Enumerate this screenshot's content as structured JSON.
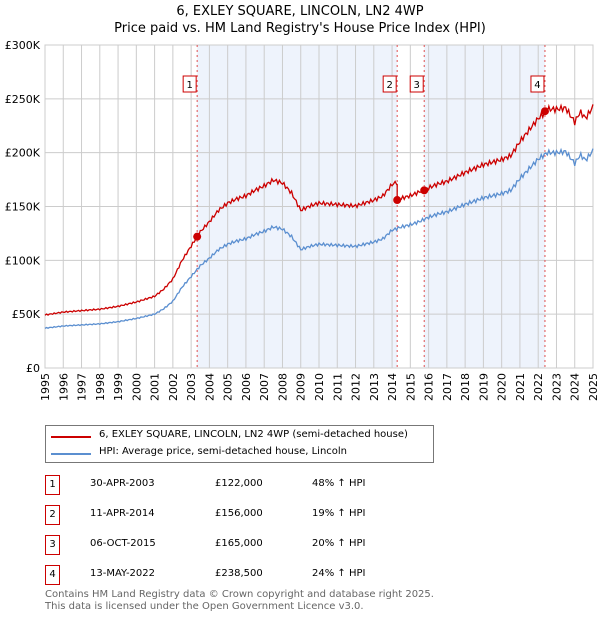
{
  "title": "6, EXLEY SQUARE, LINCOLN, LN2 4WP",
  "subtitle": "Price paid vs. HM Land Registry's House Price Index (HPI)",
  "chart_data": {
    "type": "line",
    "title": "6, EXLEY SQUARE, LINCOLN, LN2 4WP",
    "subtitle": "Price paid vs. HM Land Registry's House Price Index (HPI)",
    "xlim": [
      1995,
      2025
    ],
    "ylim": [
      0,
      300000
    ],
    "xticks": [
      "1995",
      "1996",
      "1997",
      "1998",
      "1999",
      "2000",
      "2001",
      "2002",
      "2003",
      "2004",
      "2005",
      "2006",
      "2007",
      "2008",
      "2009",
      "2010",
      "2011",
      "2012",
      "2013",
      "2014",
      "2015",
      "2016",
      "2017",
      "2018",
      "2019",
      "2020",
      "2021",
      "2022",
      "2023",
      "2024",
      "2025"
    ],
    "yticks": [
      {
        "v": 0,
        "label": "£0"
      },
      {
        "v": 50000,
        "label": "£50K"
      },
      {
        "v": 100000,
        "label": "£100K"
      },
      {
        "v": 150000,
        "label": "£150K"
      },
      {
        "v": 200000,
        "label": "£200K"
      },
      {
        "v": 250000,
        "label": "£250K"
      },
      {
        "v": 300000,
        "label": "£300K"
      }
    ],
    "grid": true,
    "hpi": {
      "name": "HPI: Average price, semi-detached house, Lincoln",
      "color": "#5b8fd0",
      "x": [
        1995,
        1996,
        1997,
        1998,
        1999,
        2000,
        2001,
        2001.5,
        2002,
        2002.5,
        2003,
        2003.5,
        2004,
        2004.5,
        2005,
        2005.5,
        2006,
        2006.5,
        2007,
        2007.5,
        2008,
        2008.5,
        2009,
        2009.5,
        2010,
        2011,
        2012,
        2013,
        2013.5,
        2014,
        2014.5,
        2015,
        2015.5,
        2016,
        2016.5,
        2017,
        2018,
        2019,
        2020,
        2020.5,
        2021,
        2021.5,
        2022,
        2022.5,
        2023,
        2023.5,
        2024,
        2024.3,
        2024.6,
        2025
      ],
      "y": [
        37000,
        39000,
        40000,
        41000,
        43000,
        46000,
        50000,
        55000,
        62000,
        75000,
        85000,
        95000,
        102000,
        110000,
        115000,
        118000,
        120000,
        124000,
        127000,
        131000,
        129000,
        122000,
        110000,
        113000,
        115000,
        114000,
        113000,
        117000,
        120000,
        128000,
        131000,
        133000,
        136000,
        140000,
        143000,
        145000,
        152000,
        158000,
        162000,
        165000,
        176000,
        185000,
        194000,
        200000,
        200000,
        201000,
        190000,
        198000,
        193000,
        202000
      ]
    },
    "property": {
      "name": "6, EXLEY SQUARE, LINCOLN, LN2 4WP (semi-detached house)",
      "color": "#cc0000"
    },
    "sales": [
      {
        "n": "1",
        "x": 2003.33,
        "price": 122000,
        "date": "30-APR-2003",
        "price_label": "£122,000",
        "hpi": "48% ↑ HPI"
      },
      {
        "n": "2",
        "x": 2014.28,
        "price": 156000,
        "date": "11-APR-2014",
        "price_label": "£156,000",
        "hpi": "19% ↑ HPI"
      },
      {
        "n": "3",
        "x": 2015.76,
        "price": 165000,
        "date": "06-OCT-2015",
        "price_label": "£165,000",
        "hpi": "20% ↑ HPI"
      },
      {
        "n": "4",
        "x": 2022.37,
        "price": 238500,
        "date": "13-MAY-2022",
        "price_label": "£238,500",
        "hpi": "24% ↑ HPI"
      }
    ],
    "legend_position": "bottom"
  },
  "footer": [
    "Contains HM Land Registry data © Crown copyright and database right 2025.",
    "This data is licensed under the Open Government Licence v3.0."
  ]
}
